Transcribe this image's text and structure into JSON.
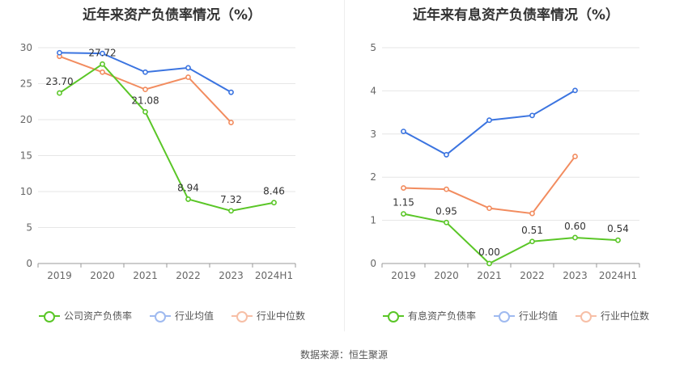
{
  "source_label": "数据来源：恒生聚源",
  "colors": {
    "company": "#5ac627",
    "industry_avg": "#3b74e0",
    "industry_median": "#f28c5f"
  },
  "chart_data": [
    {
      "type": "line",
      "title": "近年来资产负债率情况（%）",
      "categories": [
        "2019",
        "2020",
        "2021",
        "2022",
        "2023",
        "2024H1"
      ],
      "ylim": [
        0,
        30
      ],
      "yticks": [
        0,
        5,
        10,
        15,
        20,
        25,
        30
      ],
      "grid": true,
      "legend_position": "bottom",
      "series": [
        {
          "name": "公司资产负债率",
          "color": "#5ac627",
          "values": [
            23.7,
            27.72,
            21.08,
            8.94,
            7.32,
            8.46
          ],
          "labels": [
            "23.70",
            "27.72",
            "21.08",
            "8.94",
            "7.32",
            "8.46"
          ]
        },
        {
          "name": "行业均值",
          "color": "#3b74e0",
          "values": [
            29.3,
            29.2,
            26.6,
            27.2,
            23.8,
            null
          ]
        },
        {
          "name": "行业中位数",
          "color": "#f28c5f",
          "values": [
            28.8,
            26.6,
            24.2,
            25.9,
            19.6,
            null
          ]
        }
      ]
    },
    {
      "type": "line",
      "title": "近年来有息资产负债率情况（%）",
      "categories": [
        "2019",
        "2020",
        "2021",
        "2022",
        "2023",
        "2024H1"
      ],
      "ylim": [
        0,
        5
      ],
      "yticks": [
        0,
        1,
        2,
        3,
        4,
        5
      ],
      "grid": true,
      "legend_position": "bottom",
      "series": [
        {
          "name": "有息资产负债率",
          "color": "#5ac627",
          "values": [
            1.15,
            0.95,
            0.0,
            0.51,
            0.6,
            0.54
          ],
          "labels": [
            "1.15",
            "0.95",
            "0.00",
            "0.51",
            "0.60",
            "0.54"
          ]
        },
        {
          "name": "行业均值",
          "color": "#3b74e0",
          "values": [
            3.06,
            2.52,
            3.32,
            3.43,
            4.01,
            null
          ]
        },
        {
          "name": "行业中位数",
          "color": "#f28c5f",
          "values": [
            1.75,
            1.72,
            1.28,
            1.16,
            2.48,
            null
          ]
        }
      ]
    }
  ]
}
